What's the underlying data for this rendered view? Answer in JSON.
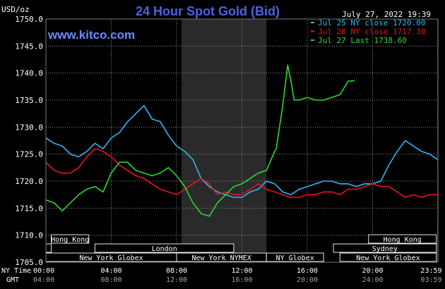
{
  "title": "24 Hour Spot Gold (Bid)",
  "site": "www.kitco.com",
  "timestamp": "July 27, 2022 19:39",
  "y_unit_label": "USD/oz",
  "time_row_labels": {
    "ny": "NY Time",
    "gmt": "GMT"
  },
  "legend": [
    {
      "label": "Jul 25 NY close 1720.00",
      "color": "#2ab7f3"
    },
    {
      "label": "Jul 26 NY close 1717.30",
      "color": "#e8141d"
    },
    {
      "label": "Jul 27 Last 1738.60",
      "color": "#2ed82e"
    }
  ],
  "sessions": {
    "row1": [
      {
        "label": "Hong Kong",
        "start": 0.33,
        "end": 2.63
      },
      {
        "label": "Hong Kong",
        "start": 19.75,
        "end": 23.9
      }
    ],
    "row2": [
      {
        "label": "",
        "start": 0.0,
        "end": 0.33
      },
      {
        "label": "London",
        "start": 3.0,
        "end": 11.5
      },
      {
        "label": "Sydney",
        "start": 17.6,
        "end": 23.9
      }
    ],
    "row3": [
      {
        "label": "New York Globex",
        "start": 0.0,
        "end": 8.0
      },
      {
        "label": "New York NYMEX",
        "start": 8.0,
        "end": 13.5
      },
      {
        "label": "NY Globex",
        "start": 13.5,
        "end": 17.0
      },
      {
        "label": "New York Globex",
        "start": 18.0,
        "end": 23.9
      }
    ]
  },
  "ticks": {
    "ny": [
      "00:00",
      "04:00",
      "08:00",
      "12:00",
      "16:00",
      "20:00",
      "23:59"
    ],
    "gmt": [
      "04:00",
      "08:00",
      "12:00",
      "16:00",
      "20:00",
      "24:00",
      "03:59"
    ]
  },
  "colors": {
    "background": "#000000",
    "grid": "#8a8a8a",
    "nymex_shade": "#2a2a2a",
    "title": "#4a63e6",
    "site": "#6a8bff",
    "session_box": "#e8e8e8",
    "session_border": "#a08a6a"
  },
  "chart_data": {
    "type": "line",
    "title": "24 Hour Spot Gold (Bid)",
    "ylabel": "USD/oz",
    "xlabel": "",
    "ylim": [
      1705,
      1750
    ],
    "xlim": [
      0,
      24
    ],
    "x_tick_values": [
      0,
      4,
      8,
      12,
      16,
      20,
      23.98
    ],
    "y_ticks": [
      1705,
      1710,
      1715,
      1720,
      1725,
      1730,
      1735,
      1740,
      1745,
      1750
    ],
    "nymex_shade_range": [
      8.3,
      13.5
    ],
    "grid": true,
    "series": [
      {
        "name": "Jul 25 NY close 1720.00",
        "color": "#2ab7f3",
        "x": [
          0,
          0.5,
          1.0,
          1.5,
          2.0,
          2.5,
          3.0,
          3.5,
          4.0,
          4.5,
          5.0,
          5.5,
          6.0,
          6.5,
          7.0,
          7.5,
          8.0,
          8.5,
          9.0,
          9.5,
          10.0,
          10.5,
          11.0,
          11.5,
          12.0,
          12.5,
          13.0,
          13.5,
          14.0,
          14.5,
          15.0,
          15.5,
          16.0,
          16.5,
          17.0,
          17.5,
          18.0,
          18.5,
          19.0,
          19.5,
          20.0,
          20.5,
          21.0,
          21.5,
          22.0,
          22.5,
          23.0,
          23.5,
          23.98
        ],
        "values": [
          1728.0,
          1727.0,
          1726.5,
          1725.0,
          1724.5,
          1725.5,
          1727.0,
          1726.0,
          1728.0,
          1729.0,
          1731.0,
          1732.5,
          1734.0,
          1731.5,
          1731.0,
          1728.5,
          1726.5,
          1725.5,
          1724.0,
          1720.5,
          1719.0,
          1718.0,
          1717.5,
          1717.0,
          1717.0,
          1718.0,
          1718.5,
          1720.0,
          1719.5,
          1718.0,
          1717.5,
          1718.5,
          1719.0,
          1719.5,
          1720.0,
          1720.0,
          1719.5,
          1719.5,
          1719.0,
          1719.5,
          1719.5,
          1720.0,
          1723.0,
          1725.5,
          1727.5,
          1726.5,
          1725.5,
          1725.0,
          1724.0
        ]
      },
      {
        "name": "Jul 26 NY close 1717.30",
        "color": "#e8141d",
        "x": [
          0,
          0.5,
          1.0,
          1.5,
          2.0,
          2.5,
          3.0,
          3.5,
          4.0,
          4.5,
          5.0,
          5.5,
          6.0,
          6.5,
          7.0,
          7.5,
          8.0,
          8.5,
          9.0,
          9.5,
          10.0,
          10.5,
          11.0,
          11.5,
          12.0,
          12.5,
          13.0,
          13.5,
          14.0,
          14.5,
          15.0,
          15.5,
          16.0,
          16.5,
          17.0,
          17.5,
          18.0,
          18.5,
          19.0,
          19.5,
          20.0,
          20.5,
          21.0,
          21.5,
          22.0,
          22.5,
          23.0,
          23.5,
          23.98
        ],
        "values": [
          1723.5,
          1722.0,
          1721.5,
          1721.5,
          1722.5,
          1724.5,
          1726.0,
          1725.5,
          1724.5,
          1723.0,
          1722.0,
          1721.0,
          1720.5,
          1719.5,
          1718.5,
          1718.0,
          1717.5,
          1718.5,
          1719.5,
          1720.5,
          1719.5,
          1717.5,
          1718.0,
          1717.5,
          1717.5,
          1718.5,
          1719.5,
          1718.5,
          1718.0,
          1717.5,
          1717.0,
          1717.0,
          1717.5,
          1717.5,
          1718.0,
          1718.0,
          1717.5,
          1718.5,
          1718.5,
          1719.0,
          1719.5,
          1719.0,
          1719.0,
          1718.0,
          1717.0,
          1717.5,
          1717.0,
          1717.5,
          1717.5
        ]
      },
      {
        "name": "Jul 27 Last 1738.60",
        "color": "#2ed82e",
        "x": [
          0,
          0.5,
          1.0,
          1.5,
          2.0,
          2.5,
          3.0,
          3.5,
          4.0,
          4.5,
          5.0,
          5.5,
          6.0,
          6.5,
          7.0,
          7.5,
          8.0,
          8.5,
          9.0,
          9.5,
          10.0,
          10.5,
          11.0,
          11.5,
          12.0,
          12.5,
          13.0,
          13.5,
          14.0,
          14.1,
          14.5,
          14.8,
          15.0,
          15.2,
          15.5,
          16.0,
          16.5,
          17.0,
          17.5,
          18.0,
          18.5,
          18.9
        ],
        "values": [
          1716.5,
          1716.0,
          1714.5,
          1716.0,
          1717.5,
          1718.5,
          1719.0,
          1718.0,
          1721.5,
          1723.5,
          1723.5,
          1722.0,
          1721.5,
          1721.0,
          1721.5,
          1722.5,
          1721.0,
          1719.0,
          1716.0,
          1714.0,
          1713.5,
          1716.0,
          1717.5,
          1719.0,
          1719.5,
          1720.5,
          1721.5,
          1722.0,
          1725.5,
          1726.0,
          1734.0,
          1741.5,
          1738.5,
          1735.0,
          1735.0,
          1735.5,
          1735.0,
          1735.0,
          1735.5,
          1736.0,
          1738.5,
          1738.6
        ]
      }
    ]
  }
}
